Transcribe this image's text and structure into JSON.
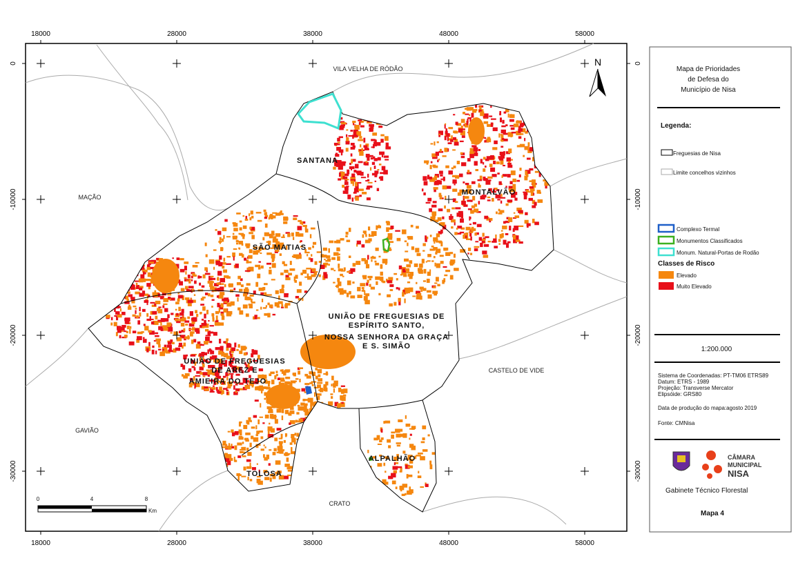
{
  "map": {
    "x_ticks": [
      "18000",
      "28000",
      "38000",
      "48000",
      "58000"
    ],
    "y_ticks": [
      "0",
      "-10000",
      "-20000",
      "-30000"
    ],
    "neighbors": [
      "VILA VELHA DE RÓDÃO",
      "MAÇÃO",
      "GAVIÃO",
      "CRATO",
      "CASTELO DE VIDE"
    ],
    "parishes": {
      "santana": "SANTANA",
      "montalvao": "MONTALVÃO",
      "sao_matias": "SÃO MATIAS",
      "espirito_santo": [
        "UNIÃO DE FREGUESIAS DE",
        "ESPÍRITO SANTO,",
        "NOSSA SENHORA DA GRAÇA",
        "E S. SIMÃO"
      ],
      "areza": [
        "UNIÃO DE FREGUESIAS",
        "DE AREZ E",
        "AMIEIRA DO TEJO"
      ],
      "tolosa": "TOLOSA",
      "alpalhao": "ALPALHÃO"
    },
    "north": "N",
    "scale_bar": {
      "labels": [
        "0",
        "4",
        "8"
      ],
      "unit": "Km"
    }
  },
  "legend": {
    "title": [
      "Mapa de Prioridades",
      "de Defesa do",
      "Município de Nisa"
    ],
    "heading": "Legenda:",
    "boundaries": [
      "Freguesias de Nisa",
      "Limite concelhos vizinhos"
    ],
    "features": [
      "Complexo Termal",
      "Monumentos Classificados",
      "Monum. Natural-Portas de Rodão"
    ],
    "risk_heading": "Classes de Risco",
    "risk": [
      "Elevado",
      "Muito Elevado"
    ],
    "scale": "1:200.000",
    "metadata": [
      "Sistema de Coordenadas: PT-TM06 ETRS89",
      "Datum:  ETRS - 1989",
      "Projeção: Transverse Mercator",
      "Elipsóide: GRS80"
    ],
    "date": "Data de produção do mapa:agosto 2019",
    "source": "Fonte: CMNisa",
    "logo": [
      "CÂMARA",
      "MUNICIPAL",
      "NISA"
    ],
    "office": "Gabinete Técnico Florestal",
    "map_number": "Mapa 4"
  }
}
